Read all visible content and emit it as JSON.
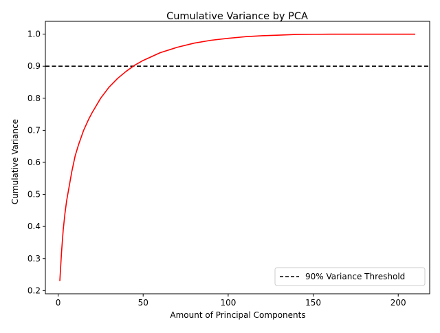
{
  "chart_data": {
    "type": "line",
    "title": "Cumulative Variance by PCA",
    "xlabel": "Amount of Principal Components",
    "ylabel": "Cumulative Variance",
    "xlim": [
      -7.5,
      218.5
    ],
    "ylim": [
      0.19,
      1.04
    ],
    "xticks": [
      0,
      50,
      100,
      150,
      200
    ],
    "yticks": [
      0.2,
      0.3,
      0.4,
      0.5,
      0.6,
      0.7,
      0.8,
      0.9,
      1.0
    ],
    "xtick_labels": [
      "0",
      "50",
      "100",
      "150",
      "200"
    ],
    "ytick_labels": [
      "0.2",
      "0.3",
      "0.4",
      "0.5",
      "0.6",
      "0.7",
      "0.8",
      "0.9",
      "1.0"
    ],
    "grid": false,
    "legend_position": "lower-right",
    "series": [
      {
        "color": "#ff0000",
        "style": "solid",
        "x": [
          1,
          2,
          3,
          4,
          5,
          6,
          8,
          10,
          12,
          15,
          18,
          20,
          25,
          30,
          35,
          40,
          45,
          50,
          60,
          70,
          80,
          90,
          100,
          110,
          120,
          130,
          140,
          150,
          160,
          170,
          180,
          190,
          200,
          210
        ],
        "y": [
          0.23,
          0.32,
          0.39,
          0.44,
          0.48,
          0.51,
          0.57,
          0.62,
          0.655,
          0.7,
          0.735,
          0.755,
          0.8,
          0.835,
          0.862,
          0.884,
          0.903,
          0.918,
          0.942,
          0.959,
          0.972,
          0.981,
          0.987,
          0.992,
          0.995,
          0.997,
          0.999,
          0.9995,
          1.0,
          1.0,
          1.0,
          1.0,
          1.0,
          1.0
        ]
      }
    ],
    "threshold": {
      "label": "90% Variance Threshold",
      "y": 0.9,
      "color": "#000000",
      "style": "dashed"
    }
  }
}
